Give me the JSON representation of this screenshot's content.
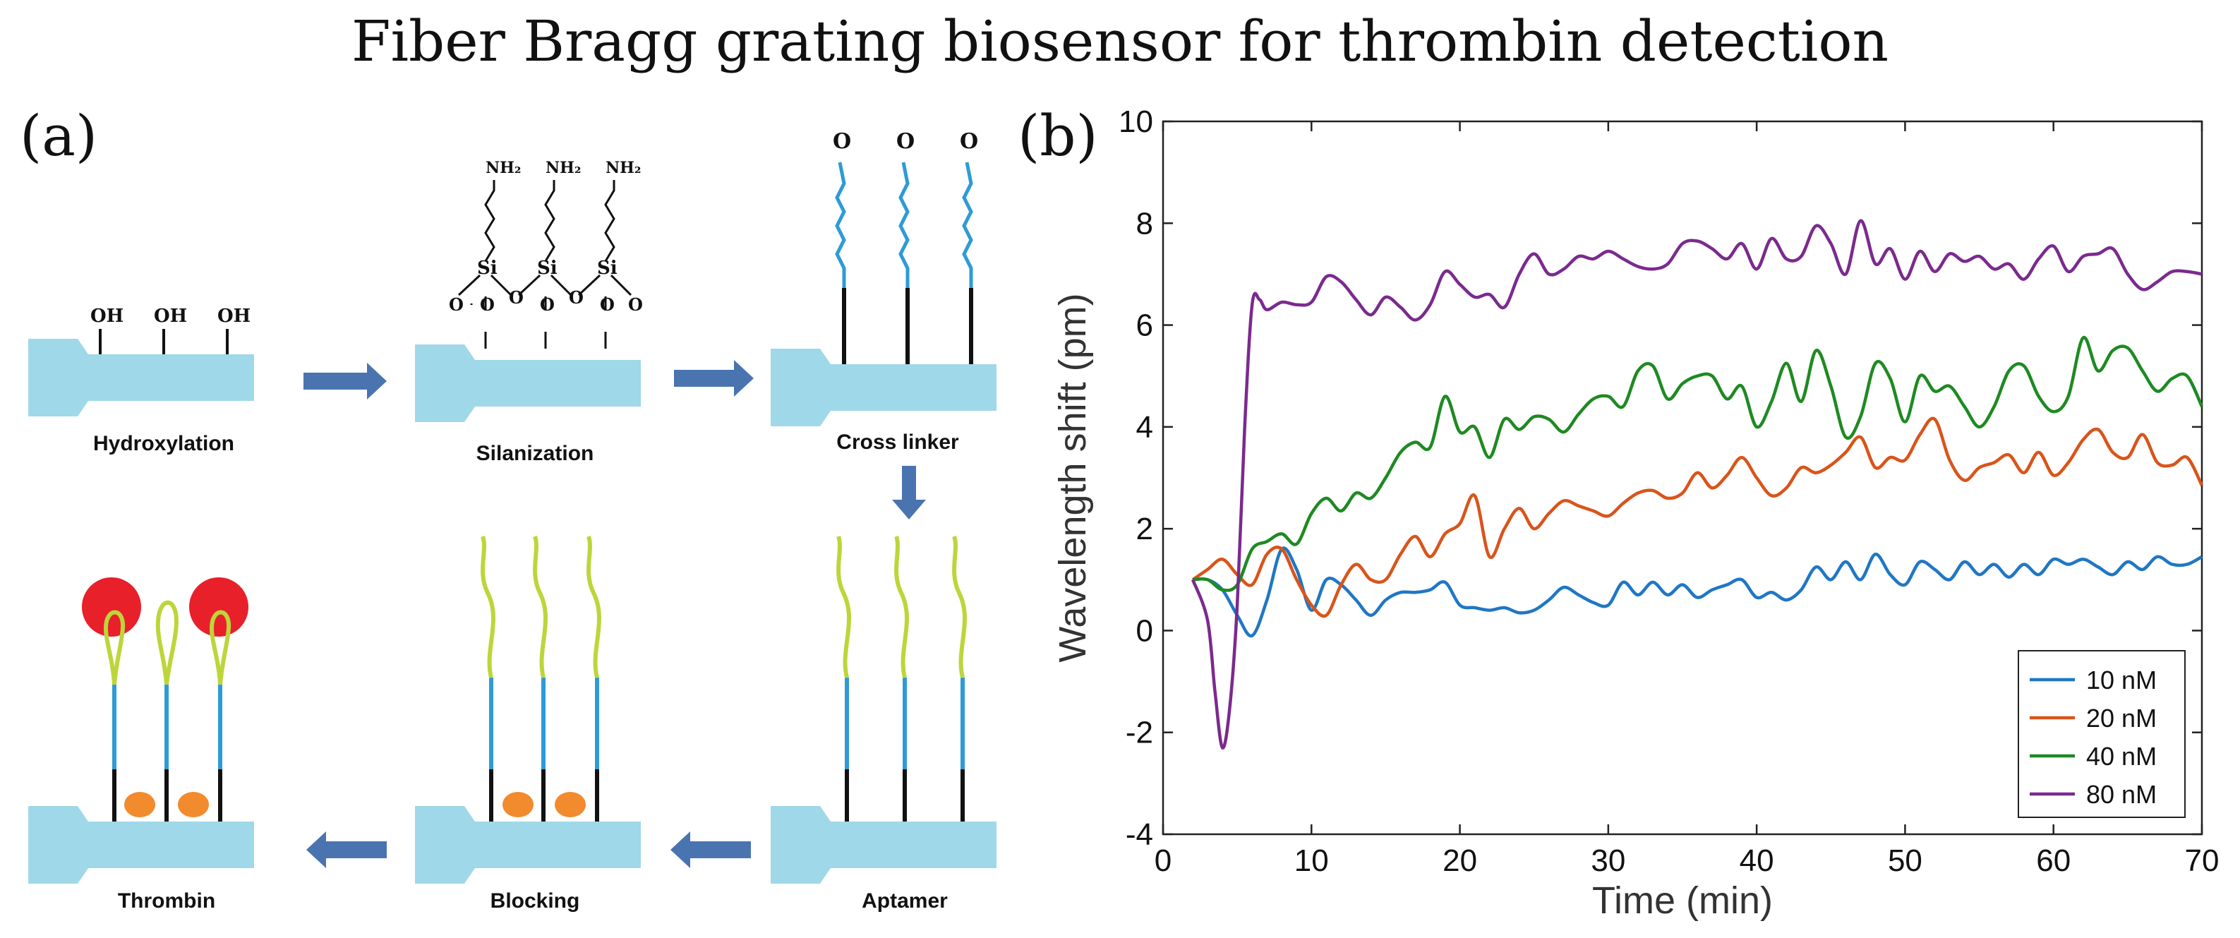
{
  "figure": {
    "title": "Fiber Bragg grating biosensor for thrombin detection",
    "panel_a_label": "(a)",
    "panel_b_label": "(b)"
  },
  "panel_a": {
    "steps": [
      "Hydroxylation",
      "Silanization",
      "Cross linker",
      "Aptamer",
      "Blocking",
      "Thrombin"
    ],
    "chem_labels": {
      "hydroxyl": "OH",
      "amine": "NH₂",
      "silicon": "Si",
      "oxygen": "O"
    },
    "colors": {
      "fiber": "#9fd8e8",
      "arrow": "#4a74b0",
      "crosslinker": "#2e9bd6",
      "aptamer": "#bcd63a",
      "linker_black": "#111111",
      "blocking": "#f28a2e",
      "thrombin": "#e8202a"
    }
  },
  "chart_data": {
    "type": "line",
    "title": "",
    "xlabel": "Time (min)",
    "ylabel": "Wavelength shift (pm)",
    "xlim": [
      0,
      70
    ],
    "ylim": [
      -4,
      10
    ],
    "xticks": [
      "0",
      "10",
      "20",
      "30",
      "40",
      "50",
      "60",
      "70"
    ],
    "yticks": [
      "-4",
      "-2",
      "0",
      "2",
      "4",
      "6",
      "8",
      "10"
    ],
    "legend_position": "bottom-right",
    "series": [
      {
        "name": "10 nM",
        "color": "#1f77c4",
        "x": [
          2,
          3,
          4,
          5,
          6,
          7,
          8,
          9,
          10,
          11,
          12,
          13,
          14,
          15,
          16,
          17,
          18,
          19,
          20,
          21,
          22,
          23,
          24,
          25,
          26,
          27,
          28,
          29,
          30,
          31,
          32,
          33,
          34,
          35,
          36,
          37,
          38,
          39,
          40,
          41,
          42,
          43,
          44,
          45,
          46,
          47,
          48,
          49,
          50,
          51,
          52,
          53,
          54,
          55,
          56,
          57,
          58,
          59,
          60,
          61,
          62,
          63,
          64,
          65,
          66,
          67,
          68,
          69,
          70
        ],
        "values": [
          1.0,
          1.0,
          0.8,
          0.3,
          -0.1,
          0.6,
          1.6,
          1.2,
          0.4,
          1.0,
          0.9,
          0.6,
          0.3,
          0.6,
          0.75,
          0.75,
          0.8,
          0.95,
          0.5,
          0.45,
          0.4,
          0.45,
          0.35,
          0.4,
          0.6,
          0.85,
          0.7,
          0.55,
          0.5,
          0.95,
          0.7,
          0.95,
          0.7,
          0.9,
          0.65,
          0.8,
          0.9,
          1.0,
          0.65,
          0.75,
          0.6,
          0.8,
          1.25,
          1.0,
          1.35,
          1.0,
          1.5,
          1.1,
          0.9,
          1.35,
          1.2,
          1.0,
          1.35,
          1.1,
          1.3,
          1.05,
          1.3,
          1.1,
          1.4,
          1.3,
          1.4,
          1.25,
          1.1,
          1.35,
          1.2,
          1.45,
          1.3,
          1.3,
          1.45
        ]
      },
      {
        "name": "20 nM",
        "color": "#d9541a",
        "x": [
          2,
          3,
          4,
          5,
          6,
          7,
          8,
          9,
          10,
          11,
          12,
          13,
          14,
          15,
          16,
          17,
          18,
          19,
          20,
          21,
          22,
          23,
          24,
          25,
          26,
          27,
          28,
          29,
          30,
          31,
          32,
          33,
          34,
          35,
          36,
          37,
          38,
          39,
          40,
          41,
          42,
          43,
          44,
          45,
          46,
          47,
          48,
          49,
          50,
          51,
          52,
          53,
          54,
          55,
          56,
          57,
          58,
          59,
          60,
          61,
          62,
          63,
          64,
          65,
          66,
          67,
          68,
          69,
          70
        ],
        "values": [
          1.0,
          1.2,
          1.4,
          1.1,
          0.9,
          1.5,
          1.6,
          1.0,
          0.5,
          0.3,
          0.9,
          1.3,
          1.0,
          1.0,
          1.5,
          1.85,
          1.45,
          1.9,
          2.1,
          2.65,
          1.45,
          2.0,
          2.4,
          2.0,
          2.3,
          2.55,
          2.45,
          2.35,
          2.25,
          2.5,
          2.7,
          2.75,
          2.6,
          2.7,
          3.1,
          2.8,
          3.05,
          3.4,
          3.0,
          2.65,
          2.8,
          3.2,
          3.1,
          3.25,
          3.5,
          3.8,
          3.2,
          3.4,
          3.35,
          3.85,
          4.15,
          3.35,
          2.95,
          3.2,
          3.3,
          3.45,
          3.1,
          3.5,
          3.05,
          3.3,
          3.75,
          3.95,
          3.5,
          3.4,
          3.85,
          3.3,
          3.25,
          3.4,
          2.85
        ]
      },
      {
        "name": "40 nM",
        "color": "#1e8a22",
        "x": [
          2,
          3,
          4,
          5,
          6,
          7,
          8,
          9,
          10,
          11,
          12,
          13,
          14,
          15,
          16,
          17,
          18,
          19,
          20,
          21,
          22,
          23,
          24,
          25,
          26,
          27,
          28,
          29,
          30,
          31,
          32,
          33,
          34,
          35,
          36,
          37,
          38,
          39,
          40,
          41,
          42,
          43,
          44,
          45,
          46,
          47,
          48,
          49,
          50,
          51,
          52,
          53,
          54,
          55,
          56,
          57,
          58,
          59,
          60,
          61,
          62,
          63,
          64,
          65,
          66,
          67,
          68,
          69,
          70
        ],
        "values": [
          1.0,
          1.0,
          0.8,
          0.9,
          1.6,
          1.75,
          1.9,
          1.7,
          2.3,
          2.6,
          2.35,
          2.7,
          2.6,
          3.0,
          3.5,
          3.7,
          3.6,
          4.6,
          3.9,
          4.0,
          3.4,
          4.15,
          3.95,
          4.2,
          4.15,
          3.9,
          4.25,
          4.55,
          4.6,
          4.4,
          5.1,
          5.2,
          4.55,
          4.85,
          5.0,
          5.0,
          4.55,
          4.8,
          4.0,
          4.5,
          5.25,
          4.5,
          5.5,
          4.8,
          3.8,
          4.2,
          5.25,
          4.95,
          4.1,
          5.0,
          4.7,
          4.8,
          4.4,
          4.0,
          4.4,
          5.1,
          5.2,
          4.6,
          4.3,
          4.6,
          5.75,
          5.1,
          5.5,
          5.55,
          5.1,
          4.7,
          4.95,
          5.0,
          4.4
        ]
      },
      {
        "name": "80 nM",
        "color": "#7b2a8e",
        "x": [
          2,
          3,
          3.5,
          4,
          4.5,
          5,
          5.5,
          6,
          6.5,
          7,
          8,
          9,
          10,
          11,
          12,
          13,
          14,
          15,
          16,
          17,
          18,
          19,
          20,
          21,
          22,
          23,
          24,
          25,
          26,
          27,
          28,
          29,
          30,
          31,
          32,
          33,
          34,
          35,
          36,
          37,
          38,
          39,
          40,
          41,
          42,
          43,
          44,
          45,
          46,
          47,
          48,
          49,
          50,
          51,
          52,
          53,
          54,
          55,
          56,
          57,
          58,
          59,
          60,
          61,
          62,
          63,
          64,
          65,
          66,
          67,
          68,
          69,
          70
        ],
        "values": [
          1.0,
          0.2,
          -1.2,
          -2.3,
          -1.5,
          0.5,
          4.0,
          6.4,
          6.5,
          6.3,
          6.45,
          6.4,
          6.45,
          6.95,
          6.85,
          6.5,
          6.2,
          6.55,
          6.35,
          6.1,
          6.4,
          7.05,
          6.8,
          6.55,
          6.6,
          6.35,
          7.0,
          7.4,
          7.0,
          7.1,
          7.35,
          7.3,
          7.45,
          7.3,
          7.15,
          7.1,
          7.2,
          7.6,
          7.65,
          7.5,
          7.3,
          7.6,
          7.1,
          7.7,
          7.3,
          7.35,
          7.95,
          7.6,
          7.0,
          8.05,
          7.2,
          7.5,
          6.9,
          7.45,
          7.05,
          7.4,
          7.25,
          7.35,
          7.1,
          7.2,
          6.9,
          7.3,
          7.55,
          7.05,
          7.35,
          7.4,
          7.5,
          7.0,
          6.7,
          6.85,
          7.05,
          7.05,
          7.0
        ]
      }
    ]
  }
}
